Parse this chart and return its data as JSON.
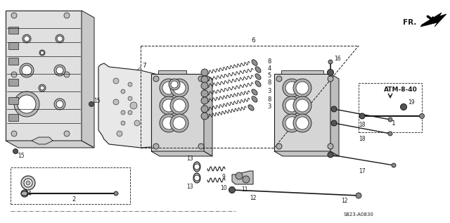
{
  "bg_color": "#ffffff",
  "line_color": "#1a1a1a",
  "gray_fill": "#cccccc",
  "dark_fill": "#555555",
  "ref_code": "ATM-8-40",
  "doc_code": "S823-A0830",
  "fr_label": "FR.",
  "fig_width": 6.4,
  "fig_height": 3.17,
  "dpi": 100
}
